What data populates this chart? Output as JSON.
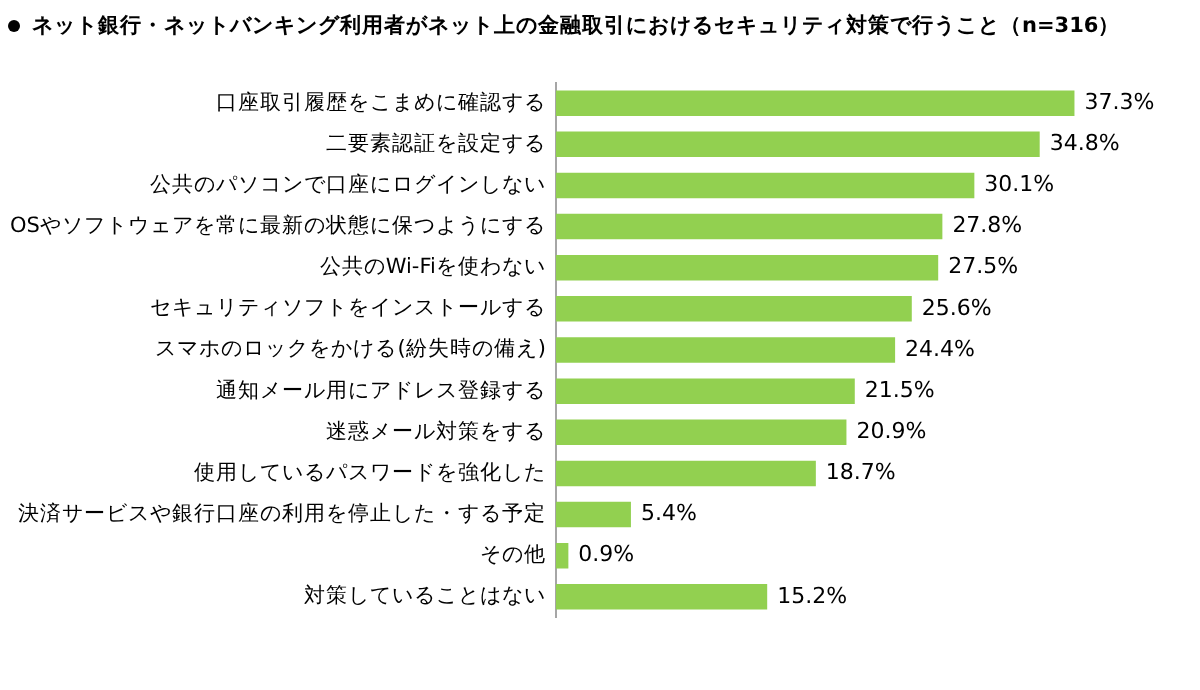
{
  "chart_data": {
    "type": "bar",
    "orientation": "horizontal",
    "title": "ネット銀行・ネットバンキング利用者がネット上の金融取引におけるセキュリティ対策で行うこと（n=316）",
    "categories": [
      "口座取引履歴をこまめに確認する",
      "二要素認証を設定する",
      "公共のパソコンで口座にログインしない",
      "OSやソフトウェアを常に最新の状態に保つようにする",
      "公共のWi-Fiを使わない",
      "セキュリティソフトをインストールする",
      "スマホのロックをかける(紛失時の備え)",
      "通知メール用にアドレス登録する",
      "迷惑メール対策をする",
      "使用しているパスワードを強化した",
      "決済サービスや銀行口座の利用を停止した・する予定",
      "その他",
      "対策していることはない"
    ],
    "values": [
      37.3,
      34.8,
      30.1,
      27.8,
      27.5,
      25.6,
      24.4,
      21.5,
      20.9,
      18.7,
      5.4,
      0.9,
      15.2
    ],
    "value_labels": [
      "37.3%",
      "34.8%",
      "30.1%",
      "27.8%",
      "27.5%",
      "25.6%",
      "24.4%",
      "21.5%",
      "20.9%",
      "18.7%",
      "5.4%",
      "0.9%",
      "15.2%"
    ],
    "color": "#92d050",
    "tick_labels": "y",
    "legend": false
  }
}
